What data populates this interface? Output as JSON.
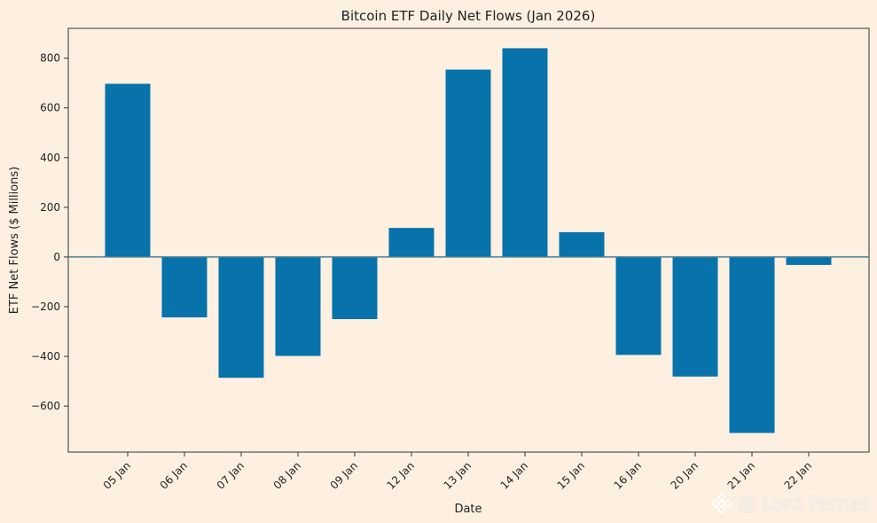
{
  "chart_data": {
    "type": "bar",
    "title": "Bitcoin ETF Daily Net Flows (Jan 2026)",
    "xlabel": "Date",
    "ylabel": "ETF Net Flows ($ Millions)",
    "categories": [
      "05 Jan",
      "06 Jan",
      "07 Jan",
      "08 Jan",
      "09 Jan",
      "12 Jan",
      "13 Jan",
      "14 Jan",
      "15 Jan",
      "16 Jan",
      "20 Jan",
      "21 Jan",
      "22 Jan"
    ],
    "values": [
      697,
      -243,
      -486,
      -398,
      -250,
      117,
      754,
      840,
      100,
      -394,
      -481,
      -708,
      -32
    ],
    "ylim": [
      -785,
      920
    ],
    "yticks": [
      -600,
      -400,
      -200,
      0,
      200,
      400,
      600,
      800
    ],
    "ytick_labels": [
      "−600",
      "−400",
      "−200",
      "0",
      "200",
      "400",
      "600",
      "800"
    ],
    "bar_color": "#0773aa",
    "zero_line_color": "#4a7f96",
    "background_color": "#fdf0e1",
    "grid": false,
    "legend": "none"
  },
  "watermark": {
    "text": "@ Lord Fernas",
    "icon": "binance-logo-icon"
  }
}
